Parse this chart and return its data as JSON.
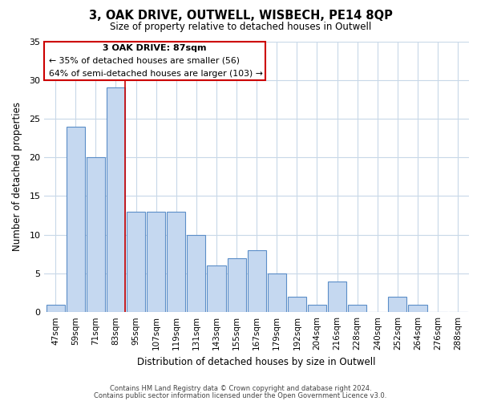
{
  "title": "3, OAK DRIVE, OUTWELL, WISBECH, PE14 8QP",
  "subtitle": "Size of property relative to detached houses in Outwell",
  "xlabel": "Distribution of detached houses by size in Outwell",
  "ylabel": "Number of detached properties",
  "categories": [
    "47sqm",
    "59sqm",
    "71sqm",
    "83sqm",
    "95sqm",
    "107sqm",
    "119sqm",
    "131sqm",
    "143sqm",
    "155sqm",
    "167sqm",
    "179sqm",
    "192sqm",
    "204sqm",
    "216sqm",
    "228sqm",
    "240sqm",
    "252sqm",
    "264sqm",
    "276sqm",
    "288sqm"
  ],
  "values": [
    1,
    24,
    20,
    29,
    13,
    13,
    13,
    10,
    6,
    7,
    8,
    5,
    2,
    1,
    4,
    1,
    0,
    2,
    1,
    0,
    0
  ],
  "bar_color": "#c5d8f0",
  "bar_edge_color": "#5b8ec8",
  "highlight_bar_index": 3,
  "highlight_line_color": "#cc0000",
  "ylim": [
    0,
    35
  ],
  "yticks": [
    0,
    5,
    10,
    15,
    20,
    25,
    30,
    35
  ],
  "annotation_title": "3 OAK DRIVE: 87sqm",
  "annotation_line1": "← 35% of detached houses are smaller (56)",
  "annotation_line2": "64% of semi-detached houses are larger (103) →",
  "footer1": "Contains HM Land Registry data © Crown copyright and database right 2024.",
  "footer2": "Contains public sector information licensed under the Open Government Licence v3.0.",
  "background_color": "#ffffff",
  "grid_color": "#c8d8e8"
}
